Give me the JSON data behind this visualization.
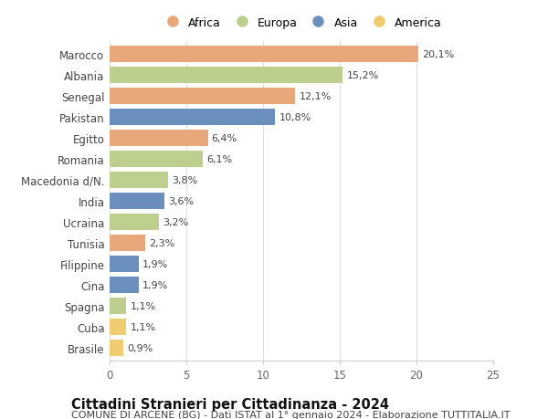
{
  "countries": [
    "Marocco",
    "Albania",
    "Senegal",
    "Pakistan",
    "Egitto",
    "Romania",
    "Macedonia d/N.",
    "India",
    "Ucraina",
    "Tunisia",
    "Filippine",
    "Cina",
    "Spagna",
    "Cuba",
    "Brasile"
  ],
  "values": [
    20.1,
    15.2,
    12.1,
    10.8,
    6.4,
    6.1,
    3.8,
    3.6,
    3.2,
    2.3,
    1.9,
    1.9,
    1.1,
    1.1,
    0.9
  ],
  "labels": [
    "20,1%",
    "15,2%",
    "12,1%",
    "10,8%",
    "6,4%",
    "6,1%",
    "3,8%",
    "3,6%",
    "3,2%",
    "2,3%",
    "1,9%",
    "1,9%",
    "1,1%",
    "1,1%",
    "0,9%"
  ],
  "continents": [
    "Africa",
    "Europa",
    "Africa",
    "Asia",
    "Africa",
    "Europa",
    "Europa",
    "Asia",
    "Europa",
    "Africa",
    "Asia",
    "Asia",
    "Europa",
    "America",
    "America"
  ],
  "continent_colors": {
    "Africa": "#E8A87C",
    "Europa": "#BCCF8E",
    "Asia": "#6B8FBD",
    "America": "#F0CC70"
  },
  "legend_order": [
    "Africa",
    "Europa",
    "Asia",
    "America"
  ],
  "xlim": [
    0,
    25
  ],
  "xticks": [
    0,
    5,
    10,
    15,
    20,
    25
  ],
  "title": "Cittadini Stranieri per Cittadinanza - 2024",
  "subtitle": "COMUNE DI ARCENE (BG) - Dati ISTAT al 1° gennaio 2024 - Elaborazione TUTTITALIA.IT",
  "background_color": "#ffffff",
  "bar_height": 0.78,
  "title_fontsize": 10.5,
  "subtitle_fontsize": 8,
  "tick_fontsize": 8.5,
  "label_fontsize": 8,
  "legend_fontsize": 9
}
